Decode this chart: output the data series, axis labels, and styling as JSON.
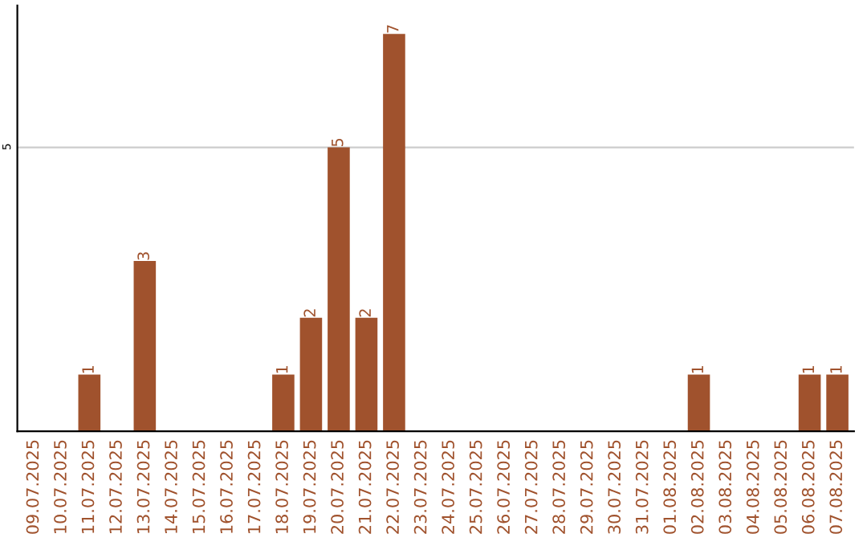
{
  "chart_data": {
    "type": "bar",
    "categories": [
      "09.07.2025",
      "10.07.2025",
      "11.07.2025",
      "12.07.2025",
      "13.07.2025",
      "14.07.2025",
      "15.07.2025",
      "16.07.2025",
      "17.07.2025",
      "18.07.2025",
      "19.07.2025",
      "20.07.2025",
      "21.07.2025",
      "22.07.2025",
      "23.07.2025",
      "24.07.2025",
      "25.07.2025",
      "26.07.2025",
      "27.07.2025",
      "28.07.2025",
      "29.07.2025",
      "30.07.2025",
      "31.07.2025",
      "01.08.2025",
      "02.08.2025",
      "03.08.2025",
      "04.08.2025",
      "05.08.2025",
      "06.08.2025",
      "07.08.2025"
    ],
    "values": [
      0,
      0,
      1,
      0,
      3,
      0,
      0,
      0,
      0,
      1,
      2,
      5,
      2,
      7,
      0,
      0,
      0,
      0,
      0,
      0,
      0,
      0,
      0,
      0,
      1,
      0,
      0,
      0,
      1,
      1
    ],
    "value_labels": [
      null,
      null,
      "1",
      null,
      "3",
      null,
      null,
      null,
      null,
      "1",
      "2",
      "5",
      "2",
      "7",
      null,
      null,
      null,
      null,
      null,
      null,
      null,
      null,
      null,
      null,
      "1",
      null,
      null,
      null,
      "1",
      "1"
    ],
    "color": "#a0522d",
    "ylim": [
      0,
      7.5
    ],
    "yticks": [
      5
    ],
    "grid": "y"
  }
}
